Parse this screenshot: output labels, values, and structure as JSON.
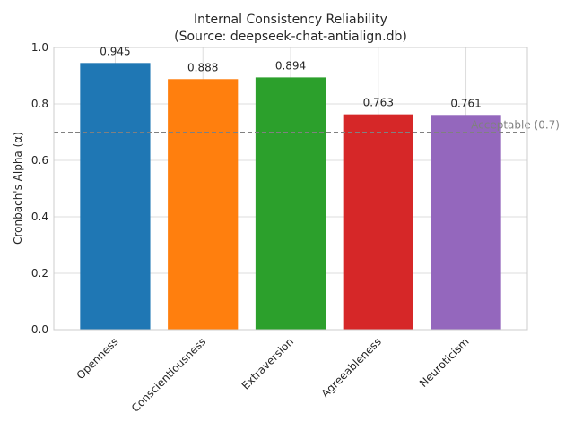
{
  "chart_data": {
    "type": "bar",
    "title": "Internal Consistency Reliability",
    "subtitle": "(Source: deepseek-chat-antialign.db)",
    "xlabel": "",
    "ylabel": "Cronbach's Alpha (α)",
    "ylim": [
      0,
      1.0
    ],
    "yticks": [
      "0.0",
      "0.2",
      "0.4",
      "0.6",
      "0.8",
      "1.0"
    ],
    "grid": true,
    "categories": [
      "Openness",
      "Conscientiousness",
      "Extraversion",
      "Agreeableness",
      "Neuroticism"
    ],
    "values": [
      0.945,
      0.888,
      0.894,
      0.763,
      0.761
    ],
    "value_labels": [
      "0.945",
      "0.888",
      "0.894",
      "0.763",
      "0.761"
    ],
    "colors": [
      "#1f77b4",
      "#ff7f0e",
      "#2ca02c",
      "#d62728",
      "#9467bd"
    ],
    "reference_line": {
      "value": 0.7,
      "label": "Acceptable (0.7)",
      "color": "#808080",
      "style": "dashed"
    }
  }
}
